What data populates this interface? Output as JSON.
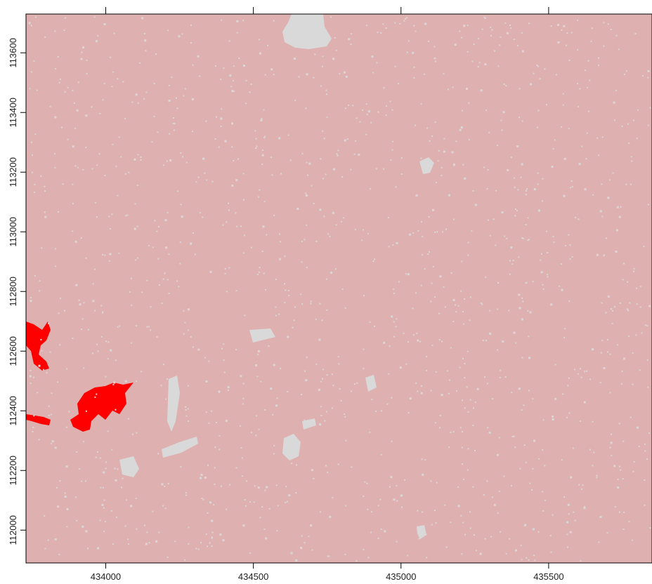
{
  "map": {
    "type": "raster",
    "background_color": "#deb0b0",
    "nodata_color": "#d9d9d9",
    "highlight_color": "#ff0000",
    "x_axis": {
      "position": "bottom",
      "ticks": [
        434000,
        434500,
        435000,
        435500
      ],
      "tick_labels": [
        "434000",
        "434500",
        "435000",
        "435500"
      ],
      "extra_ticks_top": true
    },
    "y_axis": {
      "position": "left",
      "ticks": [
        112000,
        112200,
        112400,
        112600,
        112800,
        113000,
        113200,
        113400,
        113600
      ],
      "tick_labels": [
        "112000",
        "112200",
        "112400",
        "112600",
        "112800",
        "113000",
        "113200",
        "113400",
        "113600"
      ],
      "label_rotation": "vertical"
    },
    "xlim": [
      433730,
      435850
    ],
    "ylim": [
      111890,
      113730
    ]
  }
}
